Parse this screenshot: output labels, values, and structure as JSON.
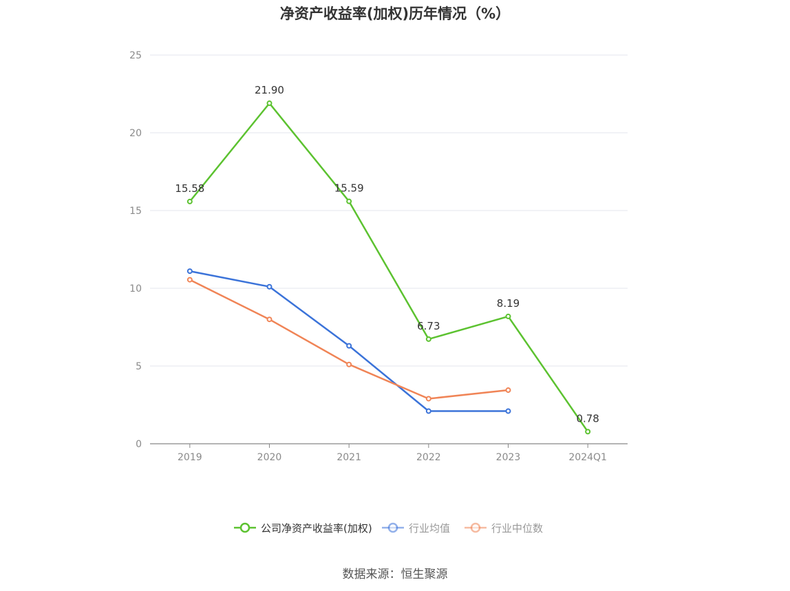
{
  "chart_data": {
    "type": "line",
    "title": "净资产收益率(加权)历年情况（%）",
    "categories": [
      "2019",
      "2020",
      "2021",
      "2022",
      "2023",
      "2024Q1"
    ],
    "ylim": [
      0,
      25
    ],
    "yticks": [
      0,
      5,
      10,
      15,
      20,
      25
    ],
    "grid": true,
    "legend_position": "bottom",
    "series": [
      {
        "name": "公司净资产收益率(加权)",
        "color": "#5cc230",
        "values": [
          15.58,
          21.9,
          15.59,
          6.73,
          8.19,
          0.78
        ],
        "labels": [
          "15.58",
          "21.90",
          "15.59",
          "6.73",
          "8.19",
          "0.78"
        ]
      },
      {
        "name": "行业均值",
        "color": "#3b73d9",
        "values": [
          11.1,
          10.1,
          6.3,
          2.1,
          2.1,
          null
        ]
      },
      {
        "name": "行业中位数",
        "color": "#f08456",
        "values": [
          10.55,
          8.0,
          5.1,
          2.9,
          3.45,
          null
        ]
      }
    ]
  },
  "source_text": "数据来源：恒生聚源"
}
